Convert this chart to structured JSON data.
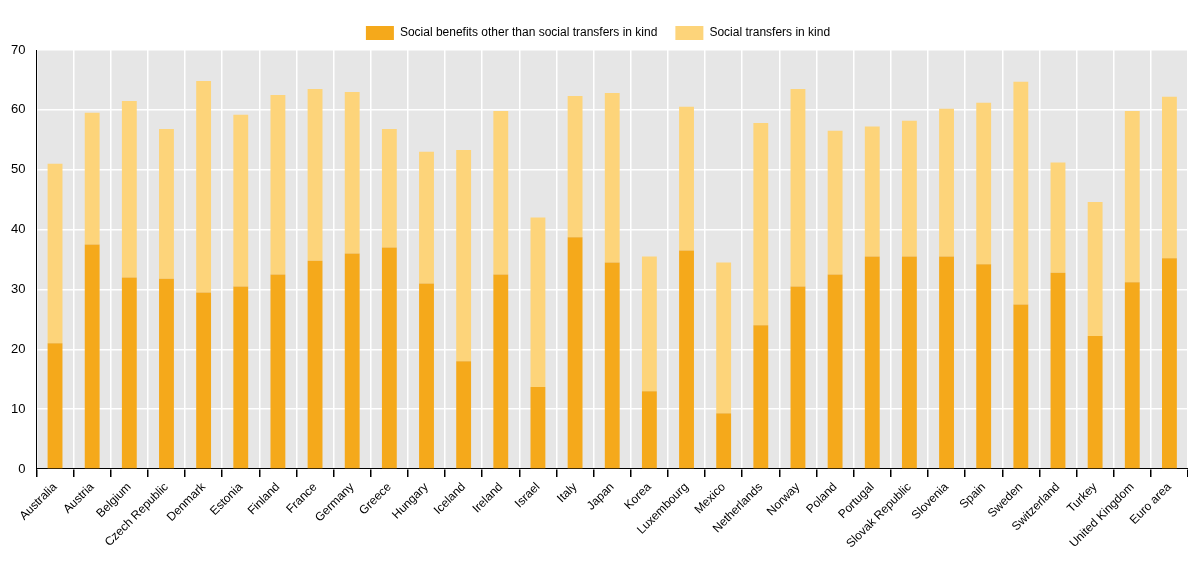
{
  "chart_data": {
    "type": "bar",
    "stacked": true,
    "categories": [
      "Australia",
      "Austria",
      "Belgium",
      "Czech Republic",
      "Denmark",
      "Estonia",
      "Finland",
      "France",
      "Germany",
      "Greece",
      "Hungary",
      "Iceland",
      "Ireland",
      "Israel",
      "Italy",
      "Japan",
      "Korea",
      "Luxembourg",
      "Mexico",
      "Netherlands",
      "Norway",
      "Poland",
      "Portugal",
      "Slovak Republic",
      "Slovenia",
      "Spain",
      "Sweden",
      "Switzerland",
      "Turkey",
      "United Kingdom",
      "Euro area"
    ],
    "series": [
      {
        "name": "Social benefits other than social transfers in kind",
        "color": "#f5a91b",
        "values": [
          21,
          37.5,
          32,
          31.8,
          29.5,
          30.5,
          32.5,
          34.8,
          36,
          37,
          31,
          18,
          32.5,
          13.7,
          38.7,
          34.5,
          13,
          36.5,
          9.3,
          24,
          30.5,
          32.5,
          35.5,
          35.5,
          35.5,
          34.2,
          27.5,
          32.8,
          22.2,
          31.2,
          35.2
        ]
      },
      {
        "name": "Social transfers in kind",
        "color": "#fdd47a",
        "values": [
          30,
          22,
          29.5,
          25,
          35.3,
          28.7,
          30,
          28.7,
          27,
          19.8,
          22,
          35.3,
          27.3,
          28.3,
          23.6,
          28.3,
          22.5,
          24,
          25.2,
          33.8,
          33,
          24,
          21.7,
          22.7,
          24.7,
          27,
          37.2,
          18.4,
          22.4,
          28.6,
          27
        ]
      }
    ],
    "ylim": [
      0,
      70
    ],
    "yticks": [
      0,
      10,
      20,
      30,
      40,
      50,
      60,
      70
    ],
    "grid": true,
    "legend": "top"
  }
}
